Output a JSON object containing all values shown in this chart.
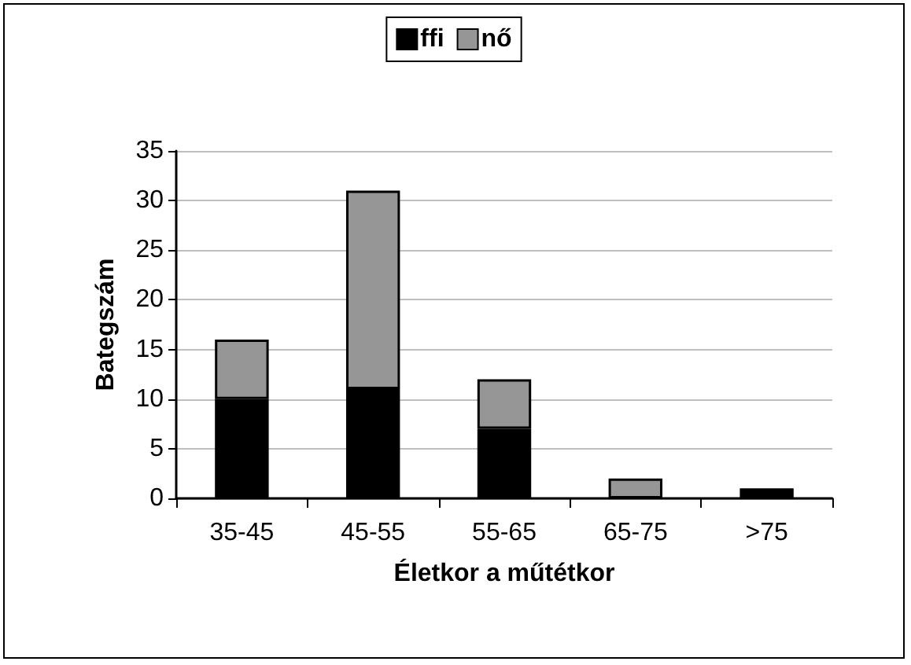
{
  "chart_data": {
    "type": "bar",
    "stacked": true,
    "categories": [
      "35-45",
      "45-55",
      "55-65",
      "65-75",
      ">75"
    ],
    "series": [
      {
        "name": "ffi",
        "color": "#000000",
        "values": [
          10,
          11,
          7,
          0,
          1
        ]
      },
      {
        "name": "nő",
        "color": "#969696",
        "values": [
          6,
          20,
          5,
          2,
          0
        ]
      }
    ],
    "xlabel": "Életkor a műtétkor",
    "ylabel": "Bategszám",
    "ylim": [
      0,
      35
    ],
    "yticks": [
      0,
      5,
      10,
      15,
      20,
      25,
      30,
      35
    ],
    "grid": "y",
    "legend": "top"
  }
}
